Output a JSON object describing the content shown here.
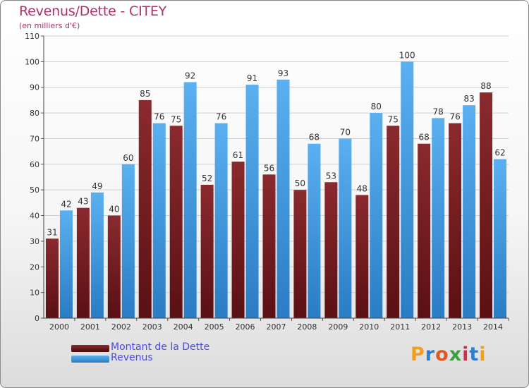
{
  "header": {
    "title": "Revenus/Dette - CITEY",
    "subtitle": "(en milliers d'€)"
  },
  "colors": {
    "dette": "#7a1e22",
    "revenus": "#3d9ae0",
    "title": "#b0306a",
    "legend_text": "#4a4ae0"
  },
  "chart_data": {
    "type": "bar",
    "categories": [
      "2000",
      "2001",
      "2002",
      "2003",
      "2004",
      "2005",
      "2006",
      "2007",
      "2008",
      "2009",
      "2010",
      "2011",
      "2012",
      "2013",
      "2014"
    ],
    "series": [
      {
        "name": "Montant de la Dette",
        "values": [
          31,
          43,
          40,
          85,
          75,
          52,
          61,
          56,
          50,
          53,
          48,
          75,
          68,
          76,
          88
        ]
      },
      {
        "name": "Revenus",
        "values": [
          42,
          49,
          60,
          76,
          92,
          76,
          91,
          93,
          68,
          70,
          80,
          100,
          78,
          83,
          62
        ]
      }
    ],
    "title": "Revenus/Dette - CITEY",
    "ylabel": "(en milliers d'€)",
    "ylim": [
      0,
      110
    ],
    "yticks": [
      0,
      10,
      20,
      30,
      40,
      50,
      60,
      70,
      80,
      90,
      100,
      110
    ],
    "grid": true,
    "legend": "bottom-left"
  },
  "legend": {
    "items": [
      {
        "label": "Montant de la Dette"
      },
      {
        "label": "Revenus"
      }
    ]
  },
  "logo": {
    "text": "Proxiti",
    "letters": [
      "P",
      "r",
      "o",
      "x",
      "i",
      "t",
      "i"
    ],
    "letter_colors": [
      "#f0a020",
      "#2f7fd0",
      "#e05a20",
      "#40a040",
      "#d03050",
      "#2f7fd0",
      "#f0a020"
    ]
  }
}
